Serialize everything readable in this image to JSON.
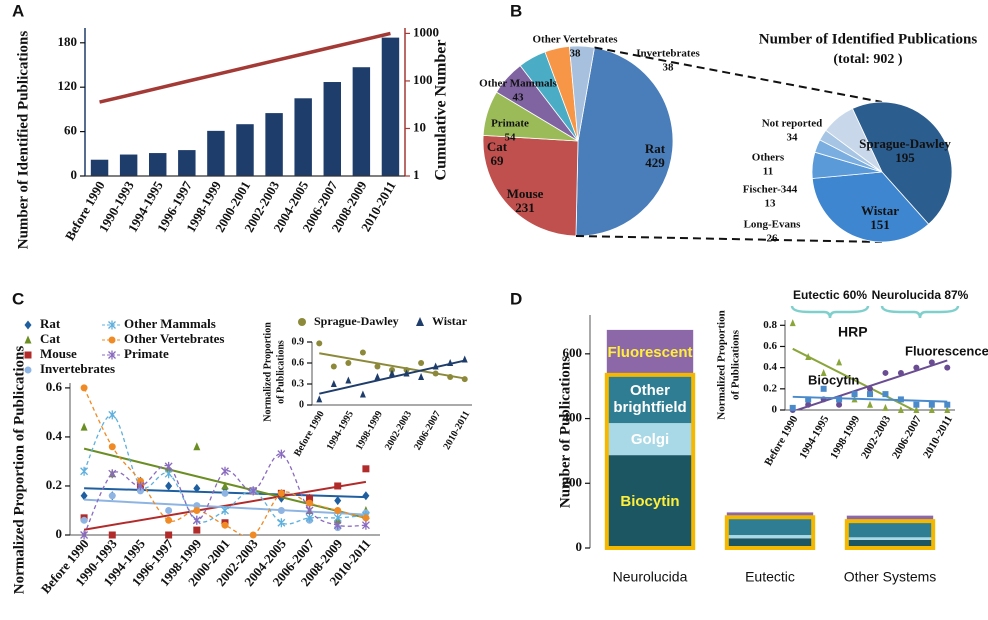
{
  "chart_data": [
    {
      "panel": "A",
      "type": "bar",
      "categories": [
        "Before 1990",
        "1990-1993",
        "1994-1995",
        "1996-1997",
        "1998-1999",
        "2000-2001",
        "2002-2003",
        "2004-2005",
        "2006-2007",
        "2008-2009",
        "2010-2011"
      ],
      "series": [
        {
          "color": "#1f3d6b",
          "values": [
            22,
            29,
            31,
            35,
            61,
            70,
            85,
            105,
            127,
            147,
            187
          ]
        },
        {
          "color": "#a33a36",
          "axis": "y2",
          "values": [
            36,
            50,
            70,
            98,
            136,
            190,
            265,
            369,
            515,
            717,
            1000
          ]
        }
      ],
      "ylabel": "Number of Identified Publications",
      "y2label": "Cumulative  Number",
      "ylim": [
        0,
        200
      ],
      "yticks": [
        0,
        60,
        120,
        180
      ],
      "y2lim": [
        1,
        1300
      ],
      "y2ticks": [
        1,
        10,
        100,
        1000
      ],
      "y2log": true
    },
    {
      "panel": "B",
      "type": "pie",
      "title": "Number of Identified Publications",
      "subtitle": "(total: 902 )",
      "categories": [
        "Rat",
        "Mouse",
        "Cat",
        "Primate",
        "Other Mammals",
        "Other Vertebrates",
        "Invertebrates"
      ],
      "values": [
        429,
        231,
        69,
        54,
        43,
        38,
        38
      ],
      "colors": [
        "#4a7ebb",
        "#c0504d",
        "#9bbb59",
        "#8064a2",
        "#4bacc6",
        "#f79646",
        "#a7c0de"
      ]
    },
    {
      "type": "pie",
      "categories": [
        "Sprague-Dawley",
        "Wistar",
        "Long-Evans",
        "Fischer-344",
        "Others",
        "Not reported"
      ],
      "values": [
        195,
        151,
        26,
        13,
        11,
        34
      ],
      "colors": [
        "#2c5d8f",
        "#3f86d0",
        "#5a9ad8",
        "#7aaee0",
        "#a6c4e4",
        "#c8d8ea"
      ]
    },
    {
      "panel": "C",
      "type": "line",
      "legend": "top",
      "categories": [
        "Before 1990",
        "1990-1993",
        "1994-1995",
        "1996-1997",
        "1998-1999",
        "2000-2001",
        "2002-2003",
        "2004-2005",
        "2006-2007",
        "2008-2009",
        "2010-2011"
      ],
      "ylabel": "Normalized Proportion of Publications",
      "ylim": [
        0,
        0.62
      ],
      "yticks": [
        0,
        0.2,
        0.4,
        0.6
      ],
      "series": [
        {
          "name": "Rat",
          "color": "#1f5fa0",
          "marker": "diamond",
          "line": "trend",
          "values": [
            0.16,
            0.16,
            0.22,
            0.2,
            0.19,
            0.19,
            0.18,
            0.15,
            0.15,
            0.14,
            0.16
          ]
        },
        {
          "name": "Cat",
          "color": "#6b8e23",
          "marker": "triangle",
          "line": "trend",
          "values": [
            0.44,
            0.25,
            0.19,
            0.27,
            0.36,
            0.2,
            0.18,
            0.17,
            0.1,
            0.06,
            0.1
          ]
        },
        {
          "name": "Mouse",
          "color": "#b22b2b",
          "marker": "square",
          "line": "trend",
          "values": [
            0.07,
            0,
            0.2,
            0,
            0.02,
            0.05,
            0.18,
            0.17,
            0.15,
            0.2,
            0.27
          ]
        },
        {
          "name": "Invertebrates",
          "color": "#8db4e2",
          "marker": "circle",
          "line": "trend",
          "values": [
            0.06,
            0.16,
            0.18,
            0.1,
            0.12,
            0.17,
            0.18,
            0.1,
            0.06,
            0.03,
            0.09
          ]
        },
        {
          "name": "Other Mammals",
          "color": "#5fb0dd",
          "marker": "x",
          "line": "curve",
          "values": [
            0.26,
            0.49,
            0.2,
            0.25,
            0.06,
            0.1,
            0.18,
            0.05,
            0.07,
            0.07,
            0.08
          ]
        },
        {
          "name": "Other Vertebrates",
          "color": "#f08a24",
          "marker": "circle",
          "line": "curve",
          "values": [
            0.6,
            0.36,
            0.22,
            0.06,
            0.1,
            0.04,
            0,
            0.17,
            0.13,
            0.1,
            0.07
          ]
        },
        {
          "name": "Primate",
          "color": "#8a6bbf",
          "marker": "x",
          "line": "curve",
          "values": [
            0,
            0.25,
            0.2,
            0.28,
            0.06,
            0.26,
            0.18,
            0.33,
            0.1,
            0.04,
            0.04
          ]
        }
      ]
    },
    {
      "type": "line",
      "legend": "top",
      "categories": [
        "Before 1990",
        null,
        "1994-1995",
        null,
        "1998-1999",
        null,
        "2002-2003",
        null,
        "2006-2007",
        null,
        "2010-2011"
      ],
      "ylabel": [
        "Normalized Proportion",
        "of Publications"
      ],
      "ylim": [
        0,
        0.9
      ],
      "yticks": [
        0,
        0.3,
        0.6,
        0.9
      ],
      "series": [
        {
          "name": "Sprague-Dawley",
          "color": "#8c8a3a",
          "marker": "circle",
          "line": "trend",
          "values": [
            0.88,
            0.55,
            0.6,
            0.75,
            0.55,
            0.5,
            0.5,
            0.6,
            0.45,
            0.4,
            0.37
          ]
        },
        {
          "name": "Wistar",
          "color": "#1f3d6b",
          "marker": "triangle",
          "line": "trend",
          "values": [
            0.08,
            0.3,
            0.35,
            0.15,
            0.4,
            0.45,
            0.45,
            0.4,
            0.55,
            0.6,
            0.65
          ]
        }
      ]
    },
    {
      "panel": "D",
      "type": "stacked_bar",
      "categories": [
        "Neurolucida",
        "Eutectic",
        "Other Systems"
      ],
      "ylabel": "Number of Publications",
      "ylim": [
        0,
        720
      ],
      "yticks": [
        0,
        200,
        400,
        600
      ],
      "series": [
        {
          "name": "Biocytin",
          "color": "#1d5663",
          "values": [
            287,
            30,
            25
          ]
        },
        {
          "name": "Golgi",
          "color": "#a9d9e6",
          "values": [
            99,
            10,
            8
          ]
        },
        {
          "name": "Other brightfield",
          "color": "#2e7d92",
          "values": [
            149,
            55,
            50
          ]
        },
        {
          "name": "Fluorescent",
          "color": "#8d68a9",
          "values": [
            139,
            15,
            17
          ]
        }
      ]
    },
    {
      "type": "line",
      "legend": "inline",
      "categories": [
        "Before 1990",
        null,
        "1994-1995",
        null,
        "1998-1999",
        null,
        "2002-2003",
        null,
        "2006-2007",
        null,
        "2010-2011"
      ],
      "ylabel": [
        "Normalized Proportion",
        "of Publications"
      ],
      "ylim": [
        0,
        0.85
      ],
      "yticks": [
        0,
        0.2,
        0.4,
        0.6,
        0.8
      ],
      "annotations": [
        "Eutectic 60%",
        "Neurolucida 87%"
      ],
      "series": [
        {
          "name": "HRP",
          "color": "#8aa53a",
          "marker": "triangle",
          "line": "trend",
          "values": [
            0.82,
            0.5,
            0.35,
            0.45,
            0.1,
            0.05,
            0.02,
            0,
            0,
            0,
            0
          ]
        },
        {
          "name": "Fluorescence",
          "color": "#6a4c93",
          "marker": "circle",
          "line": "trend",
          "values": [
            0,
            0.05,
            0.1,
            0.05,
            0.15,
            0.2,
            0.35,
            0.35,
            0.4,
            0.45,
            0.4
          ]
        },
        {
          "name": "Biocytin",
          "color": "#4a8acb",
          "marker": "square",
          "line": "trend",
          "values": [
            0.02,
            0.1,
            0.2,
            0.1,
            0.15,
            0.15,
            0.15,
            0.1,
            0.05,
            0.05,
            0.05
          ]
        }
      ]
    }
  ]
}
